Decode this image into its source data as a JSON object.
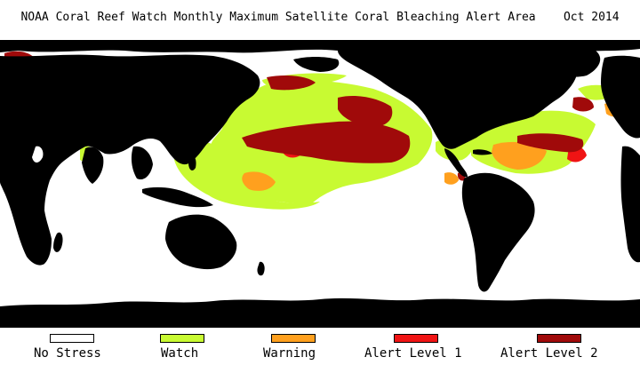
{
  "header": {
    "title": "NOAA Coral Reef Watch Monthly Maximum Satellite Coral Bleaching Alert Area",
    "date": "Oct 2014"
  },
  "colors": {
    "ocean": "#ffffff",
    "land": "#000000",
    "no_stress": "#ffffff",
    "watch": "#c8fa32",
    "warning": "#ffa01e",
    "alert_level_1": "#f01414",
    "alert_level_2": "#a00a0a"
  },
  "legend": [
    {
      "key": "no_stress",
      "label": "No Stress"
    },
    {
      "key": "watch",
      "label": "Watch"
    },
    {
      "key": "warning",
      "label": "Warning"
    },
    {
      "key": "alert_level_1",
      "label": "Alert Level 1"
    },
    {
      "key": "alert_level_2",
      "label": "Alert Level 2"
    }
  ]
}
